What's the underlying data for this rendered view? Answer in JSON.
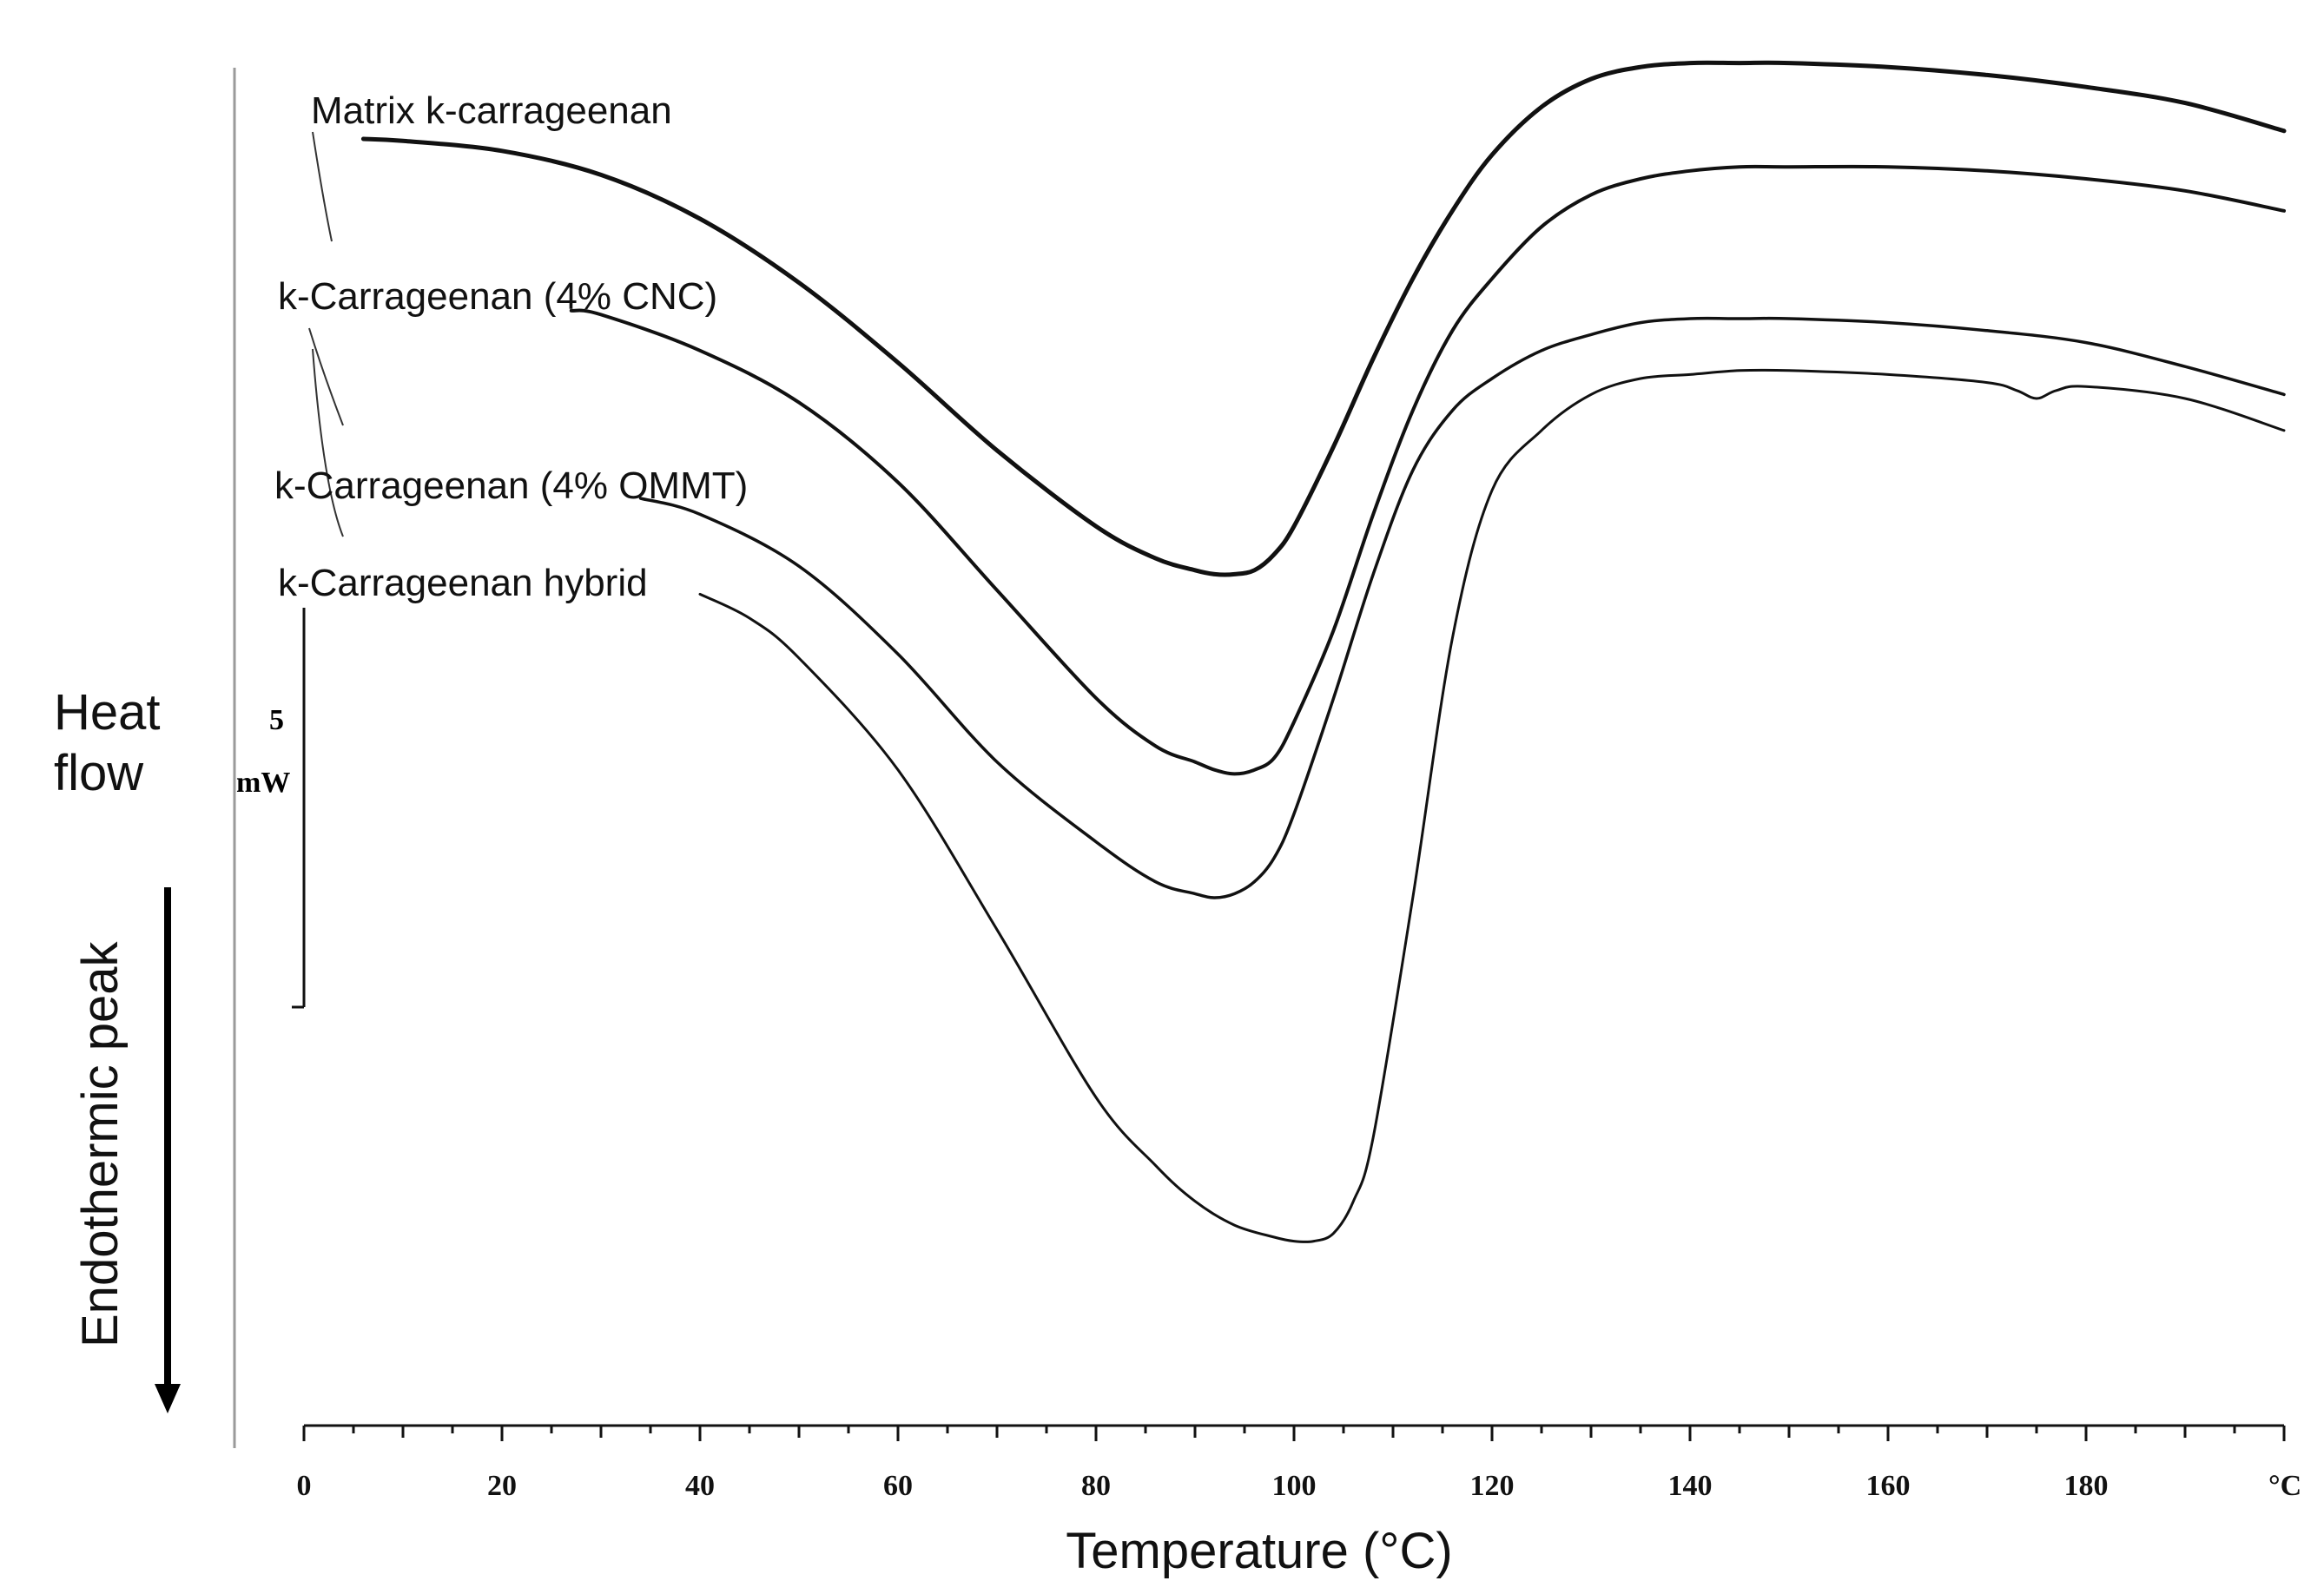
{
  "chart_data": {
    "type": "line",
    "title": "",
    "xlabel": "Temperature (°C)",
    "ylabel_top": "Heat flow",
    "ylabel_side": "Endothermic peak",
    "x_unit_label": "°C",
    "xlim": [
      0,
      200
    ],
    "x_ticks": [
      0,
      20,
      40,
      60,
      80,
      100,
      120,
      140,
      160,
      180
    ],
    "y_scale_bar": {
      "value": "5",
      "unit": "mW"
    },
    "y_units": "mW (relative, curves vertically offset)",
    "series": [
      {
        "name": "Matrix k-carrageenan",
        "x": [
          6,
          10,
          20,
          30,
          40,
          50,
          60,
          70,
          80,
          86,
          90,
          92,
          94,
          96,
          98,
          100,
          104,
          108,
          112,
          116,
          120,
          125,
          130,
          135,
          140,
          145,
          150,
          160,
          170,
          180,
          190,
          200
        ],
        "y": [
          0.0,
          -0.05,
          -0.3,
          -0.9,
          -2.0,
          -3.6,
          -5.6,
          -7.8,
          -9.7,
          -10.5,
          -10.8,
          -10.9,
          -10.9,
          -10.8,
          -10.4,
          -9.7,
          -7.7,
          -5.5,
          -3.5,
          -1.8,
          -0.4,
          0.8,
          1.5,
          1.8,
          1.9,
          1.9,
          1.9,
          1.8,
          1.6,
          1.3,
          0.9,
          0.2
        ]
      },
      {
        "name": "k-Carrageenan (4% CNC)",
        "x": [
          27,
          30,
          40,
          50,
          60,
          70,
          80,
          86,
          90,
          92,
          94,
          96,
          98,
          100,
          104,
          108,
          112,
          116,
          120,
          125,
          130,
          135,
          140,
          145,
          150,
          160,
          170,
          180,
          190,
          200
        ],
        "y": [
          -4.3,
          -4.4,
          -5.3,
          -6.6,
          -8.6,
          -11.3,
          -14.0,
          -15.2,
          -15.6,
          -15.8,
          -15.9,
          -15.8,
          -15.5,
          -14.6,
          -12.3,
          -9.4,
          -6.8,
          -4.8,
          -3.5,
          -2.2,
          -1.4,
          -1.0,
          -0.8,
          -0.7,
          -0.7,
          -0.7,
          -0.8,
          -1.0,
          -1.3,
          -1.8
        ]
      },
      {
        "name": "k-Carrageenan (4% OMMT)",
        "x": [
          34,
          40,
          50,
          60,
          70,
          80,
          86,
          90,
          92,
          94,
          96,
          98,
          100,
          104,
          108,
          112,
          116,
          120,
          125,
          130,
          135,
          140,
          145,
          150,
          160,
          170,
          180,
          190,
          200
        ],
        "y": [
          -9.0,
          -9.4,
          -10.7,
          -12.9,
          -15.6,
          -17.6,
          -18.6,
          -18.9,
          -19.0,
          -18.9,
          -18.6,
          -18.0,
          -16.9,
          -14.0,
          -10.9,
          -8.3,
          -6.8,
          -6.0,
          -5.3,
          -4.9,
          -4.6,
          -4.5,
          -4.5,
          -4.5,
          -4.6,
          -4.8,
          -5.1,
          -5.7,
          -6.4
        ]
      },
      {
        "name": "k-Carrageenan hybrid",
        "x": [
          40,
          45,
          50,
          60,
          70,
          80,
          86,
          90,
          94,
          98,
          100,
          102,
          104,
          106,
          108,
          112,
          116,
          120,
          125,
          130,
          135,
          140,
          145,
          150,
          160,
          170,
          173,
          175,
          177,
          180,
          190,
          200
        ],
        "y": [
          -11.4,
          -12.0,
          -13.0,
          -15.8,
          -19.8,
          -24.0,
          -25.7,
          -26.6,
          -27.2,
          -27.5,
          -27.6,
          -27.6,
          -27.4,
          -26.6,
          -25.0,
          -19.0,
          -12.5,
          -8.8,
          -7.3,
          -6.4,
          -6.0,
          -5.9,
          -5.8,
          -5.8,
          -5.9,
          -6.1,
          -6.3,
          -6.5,
          -6.3,
          -6.2,
          -6.5,
          -7.3
        ]
      }
    ],
    "legend": "inline labels at upper-left, one per curve"
  }
}
